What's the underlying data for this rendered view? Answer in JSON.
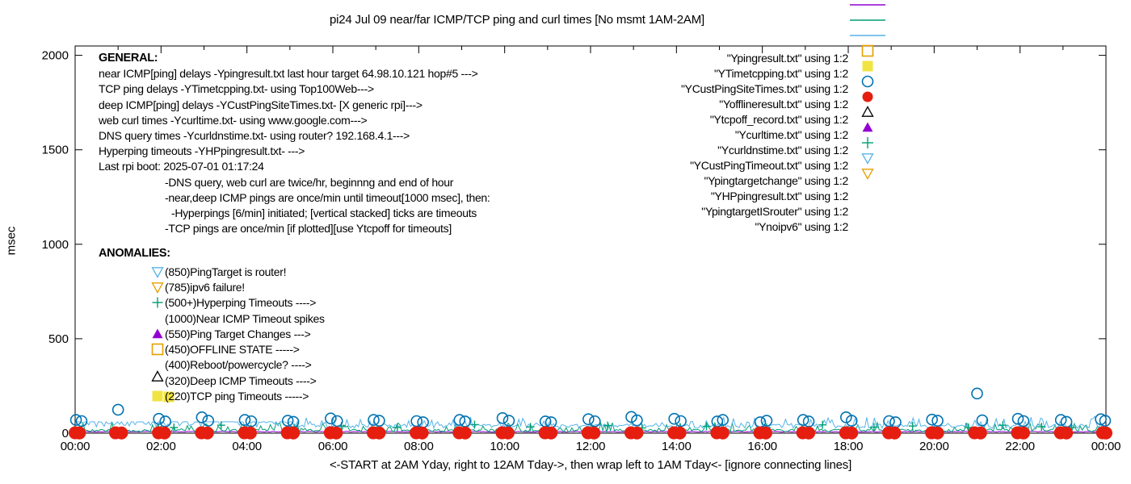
{
  "title": "pi24 Jul 09  near/far ICMP/TCP ping and curl times [No msmt 1AM-2AM]",
  "colors": {
    "purple": "#9400D3",
    "green": "#009E73",
    "skyblue": "#56B4E9",
    "orange": "#E69F00",
    "yellow": "#F0E442",
    "blue": "#0072B2",
    "red": "#E51E10",
    "black": "#000000"
  },
  "general": {
    "heading": "GENERAL:",
    "lines": [
      {
        "text": "near ICMP[ping] delays -Ypingresult.txt last hour target 64.98.10.121 hop#5 --->",
        "indent": 0
      },
      {
        "text": "TCP ping delays -YTimetcpping.txt- using Top100Web--->",
        "indent": 0
      },
      {
        "text": "deep ICMP[ping] delays -YCustPingSiteTimes.txt- [X generic rpi]--->",
        "indent": 0
      },
      {
        "text": "web curl times -Ycurltime.txt- using www.google.com--->",
        "indent": 0
      },
      {
        "text": "DNS query times -Ycurldnstime.txt- using router? 192.168.4.1--->",
        "indent": 0
      },
      {
        "text": "Hyperping timeouts -YHPpingresult.txt- --->",
        "indent": 0
      },
      {
        "text": "Last rpi boot: 2025-07-01 01:17:24",
        "indent": 0
      },
      {
        "text": "-DNS query, web curl are twice/hr, beginnng and end of hour",
        "indent": 1
      },
      {
        "text": "-near,deep ICMP pings are once/min until timeout[1000 msec], then:",
        "indent": 1
      },
      {
        "text": "-Hyperpings [6/min] initiated; [vertical stacked] ticks are timeouts",
        "indent": 2
      },
      {
        "text": "-TCP pings are once/min [if plotted][use Ytcpoff for timeouts]",
        "indent": 1
      }
    ]
  },
  "anomalies": {
    "heading": "ANOMALIES:",
    "items": [
      {
        "marker": "triangle-down-open",
        "color": "#56B4E9",
        "label": "(850)PingTarget is router!"
      },
      {
        "marker": "triangle-down-open",
        "color": "#E69F00",
        "label": "(785)ipv6 failure!"
      },
      {
        "marker": "plus",
        "color": "#009E73",
        "label": "(500+)Hyperping Timeouts ---->"
      },
      {
        "marker": "none",
        "color": "",
        "label": "(1000)Near ICMP Timeout spikes"
      },
      {
        "marker": "triangle-filled",
        "color": "#9400D3",
        "label": "(550)Ping Target Changes --->"
      },
      {
        "marker": "square-open",
        "color": "#E69F00",
        "label": "(450)OFFLINE STATE ----->"
      },
      {
        "marker": "none",
        "color": "",
        "label": "(400)Reboot/powercycle? ---->"
      },
      {
        "marker": "triangle-open",
        "color": "#000000",
        "label": "(320)Deep ICMP Timeouts ---->",
        "dy": -5
      },
      {
        "marker": "square-double-filled",
        "color": "#F0E442",
        "label": "(220)TCP ping Timeouts ----->"
      }
    ]
  },
  "legend": {
    "items": [
      {
        "label": "\"Ypingresult.txt\" using 1:2",
        "marker": "line",
        "color": "#9400D3"
      },
      {
        "label": "\"YTimetcpping.txt\" using 1:2",
        "marker": "line",
        "color": "#009E73"
      },
      {
        "label": "\"YCustPingSiteTimes.txt\" using 1:2",
        "marker": "line",
        "color": "#56B4E9"
      },
      {
        "label": "\"Yofflineresult.txt\" using 1:2",
        "marker": "square-open",
        "color": "#E69F00"
      },
      {
        "label": "\"Ytcpoff_record.txt\" using 1:2",
        "marker": "square-filled",
        "color": "#F0E442"
      },
      {
        "label": "\"Ycurltime.txt\" using 1:2",
        "marker": "circle-open",
        "color": "#0072B2"
      },
      {
        "label": "\"Ycurldnstime.txt\" using 1:2",
        "marker": "circle-filled",
        "color": "#E51E10"
      },
      {
        "label": "\"YCustPingTimeout.txt\" using 1:2",
        "marker": "triangle-open",
        "color": "#000000"
      },
      {
        "label": "\"Ypingtargetchange\" using 1:2",
        "marker": "triangle-filled",
        "color": "#9400D3"
      },
      {
        "label": "\"YHPpingresult.txt\" using 1:2",
        "marker": "plus",
        "color": "#009E73"
      },
      {
        "label": "\"YpingtargetISrouter\" using 1:2",
        "marker": "triangle-down-open",
        "color": "#56B4E9"
      },
      {
        "label": "\"Ynoipv6\" using 1:2",
        "marker": "triangle-down-open",
        "color": "#E69F00"
      }
    ]
  },
  "chart_data": {
    "type": "line+scatter",
    "title": "pi24 Jul 09  near/far ICMP/TCP ping and curl times [No msmt 1AM-2AM]",
    "xlabel": "<-START at 2AM Yday, right to 12AM Tday->, then wrap left to 1AM Tday<- [ignore connecting lines]",
    "ylabel": "msec",
    "xlim": [
      0,
      24
    ],
    "ylim": [
      0,
      2045
    ],
    "grid": false,
    "legend_position": "top-right-inside",
    "seed": 7,
    "x_major": [
      {
        "h": 0,
        "label": "00:00"
      },
      {
        "h": 2,
        "label": "02:00"
      },
      {
        "h": 4,
        "label": "04:00"
      },
      {
        "h": 6,
        "label": "06:00"
      },
      {
        "h": 8,
        "label": "08:00"
      },
      {
        "h": 10,
        "label": "10:00"
      },
      {
        "h": 12,
        "label": "12:00"
      },
      {
        "h": 14,
        "label": "14:00"
      },
      {
        "h": 16,
        "label": "16:00"
      },
      {
        "h": 18,
        "label": "18:00"
      },
      {
        "h": 20,
        "label": "20:00"
      },
      {
        "h": 22,
        "label": "22:00"
      },
      {
        "h": 24,
        "label": "00:00"
      }
    ],
    "x_minor_step": 1,
    "y_major": [
      {
        "v": 0,
        "label": "0"
      },
      {
        "v": 500,
        "label": "500"
      },
      {
        "v": 1000,
        "label": "1000"
      },
      {
        "v": 1500,
        "label": "1500"
      },
      {
        "v": 2000,
        "label": "2000"
      }
    ],
    "line_series": [
      {
        "name": "Ypingresult.txt",
        "color": "#9400D3",
        "segments": [
          {
            "from": 0,
            "to": 24,
            "mode": "noise",
            "base": 6,
            "amp": 4,
            "spike_prob": 0,
            "spike_amp": 0
          }
        ]
      },
      {
        "name": "YTimetcpping.txt",
        "color": "#009E73",
        "segments": [
          {
            "from": 0,
            "to": 24,
            "mode": "noise",
            "base": 7,
            "amp": 14,
            "spike_prob": 0.2,
            "spike_amp": 40
          }
        ]
      },
      {
        "name": "YCustPingSiteTimes.txt",
        "color": "#56B4E9",
        "segments": [
          {
            "from": 0,
            "to": 5.2,
            "mode": "flat-with-dips",
            "value": 60,
            "dip_prob": 0.5,
            "dip_amp": 28
          },
          {
            "from": 5.2,
            "to": 24,
            "mode": "noise",
            "base": 26,
            "amp": 22,
            "spike_prob": 0.25,
            "spike_amp": 45
          }
        ]
      }
    ],
    "scatter_series": [
      {
        "name": "YHPpingresult.txt",
        "marker": "plus",
        "color": "#009E73",
        "size": 5,
        "points": [
          [
            2.3,
            30
          ],
          [
            3.4,
            42
          ],
          [
            5.1,
            28
          ],
          [
            6.2,
            38
          ],
          [
            7.5,
            30
          ],
          [
            9.3,
            45
          ],
          [
            10.6,
            33
          ],
          [
            12.4,
            40
          ],
          [
            13.2,
            28
          ],
          [
            14.7,
            36
          ],
          [
            16.1,
            30
          ],
          [
            17.4,
            44
          ],
          [
            18.6,
            32
          ],
          [
            19.5,
            38
          ],
          [
            20.8,
            30
          ],
          [
            21.6,
            42
          ],
          [
            22.5,
            34
          ],
          [
            23.2,
            30
          ]
        ]
      },
      {
        "name": "Ycurltime.txt",
        "marker": "circle-open",
        "color": "#0072B2",
        "size": 6.5,
        "points": [
          [
            0.02,
            70
          ],
          [
            0.15,
            64
          ],
          [
            1.0,
            124
          ],
          [
            1.95,
            76
          ],
          [
            2.1,
            62
          ],
          [
            2.95,
            84
          ],
          [
            3.1,
            66
          ],
          [
            3.95,
            70
          ],
          [
            4.1,
            63
          ],
          [
            4.95,
            66
          ],
          [
            5.08,
            60
          ],
          [
            5.95,
            78
          ],
          [
            6.1,
            64
          ],
          [
            6.95,
            70
          ],
          [
            7.08,
            66
          ],
          [
            7.95,
            64
          ],
          [
            8.1,
            58
          ],
          [
            8.95,
            70
          ],
          [
            9.08,
            62
          ],
          [
            9.95,
            80
          ],
          [
            10.1,
            66
          ],
          [
            10.95,
            62
          ],
          [
            11.08,
            58
          ],
          [
            11.95,
            74
          ],
          [
            12.1,
            63
          ],
          [
            12.95,
            86
          ],
          [
            13.08,
            68
          ],
          [
            13.95,
            76
          ],
          [
            14.1,
            64
          ],
          [
            14.95,
            62
          ],
          [
            15.08,
            70
          ],
          [
            15.95,
            58
          ],
          [
            16.1,
            66
          ],
          [
            16.95,
            70
          ],
          [
            17.08,
            62
          ],
          [
            17.95,
            84
          ],
          [
            18.08,
            66
          ],
          [
            18.95,
            64
          ],
          [
            19.1,
            58
          ],
          [
            19.95,
            72
          ],
          [
            20.08,
            66
          ],
          [
            21.0,
            210
          ],
          [
            21.12,
            68
          ],
          [
            21.95,
            76
          ],
          [
            22.08,
            64
          ],
          [
            22.95,
            70
          ],
          [
            23.08,
            60
          ],
          [
            23.88,
            74
          ],
          [
            23.98,
            66
          ]
        ]
      },
      {
        "name": "Ycurldnstime.txt",
        "marker": "circle-filled",
        "color": "#E51E10",
        "size": 8,
        "points": [
          [
            0.0,
            2
          ],
          [
            0.1,
            1
          ],
          [
            0.94,
            2
          ],
          [
            1.08,
            1
          ],
          [
            1.94,
            2
          ],
          [
            2.08,
            1
          ],
          [
            2.94,
            2
          ],
          [
            3.08,
            1
          ],
          [
            3.94,
            2
          ],
          [
            4.08,
            1
          ],
          [
            4.94,
            2
          ],
          [
            5.08,
            1
          ],
          [
            5.94,
            2
          ],
          [
            6.08,
            1
          ],
          [
            6.94,
            2
          ],
          [
            7.08,
            1
          ],
          [
            7.94,
            2
          ],
          [
            8.08,
            1
          ],
          [
            8.94,
            2
          ],
          [
            9.08,
            1
          ],
          [
            9.94,
            2
          ],
          [
            10.08,
            1
          ],
          [
            10.94,
            2
          ],
          [
            11.08,
            1
          ],
          [
            11.94,
            2
          ],
          [
            12.08,
            1
          ],
          [
            12.94,
            2
          ],
          [
            13.08,
            1
          ],
          [
            13.94,
            2
          ],
          [
            14.08,
            1
          ],
          [
            14.94,
            2
          ],
          [
            15.08,
            1
          ],
          [
            15.94,
            2
          ],
          [
            16.08,
            1
          ],
          [
            16.94,
            2
          ],
          [
            17.08,
            1
          ],
          [
            17.94,
            2
          ],
          [
            18.08,
            1
          ],
          [
            18.94,
            2
          ],
          [
            19.08,
            1
          ],
          [
            19.94,
            2
          ],
          [
            20.08,
            1
          ],
          [
            20.94,
            2
          ],
          [
            21.08,
            1
          ],
          [
            21.94,
            2
          ],
          [
            22.08,
            1
          ],
          [
            22.94,
            2
          ],
          [
            23.08,
            1
          ],
          [
            23.92,
            2
          ],
          [
            24.0,
            1
          ]
        ]
      }
    ]
  }
}
